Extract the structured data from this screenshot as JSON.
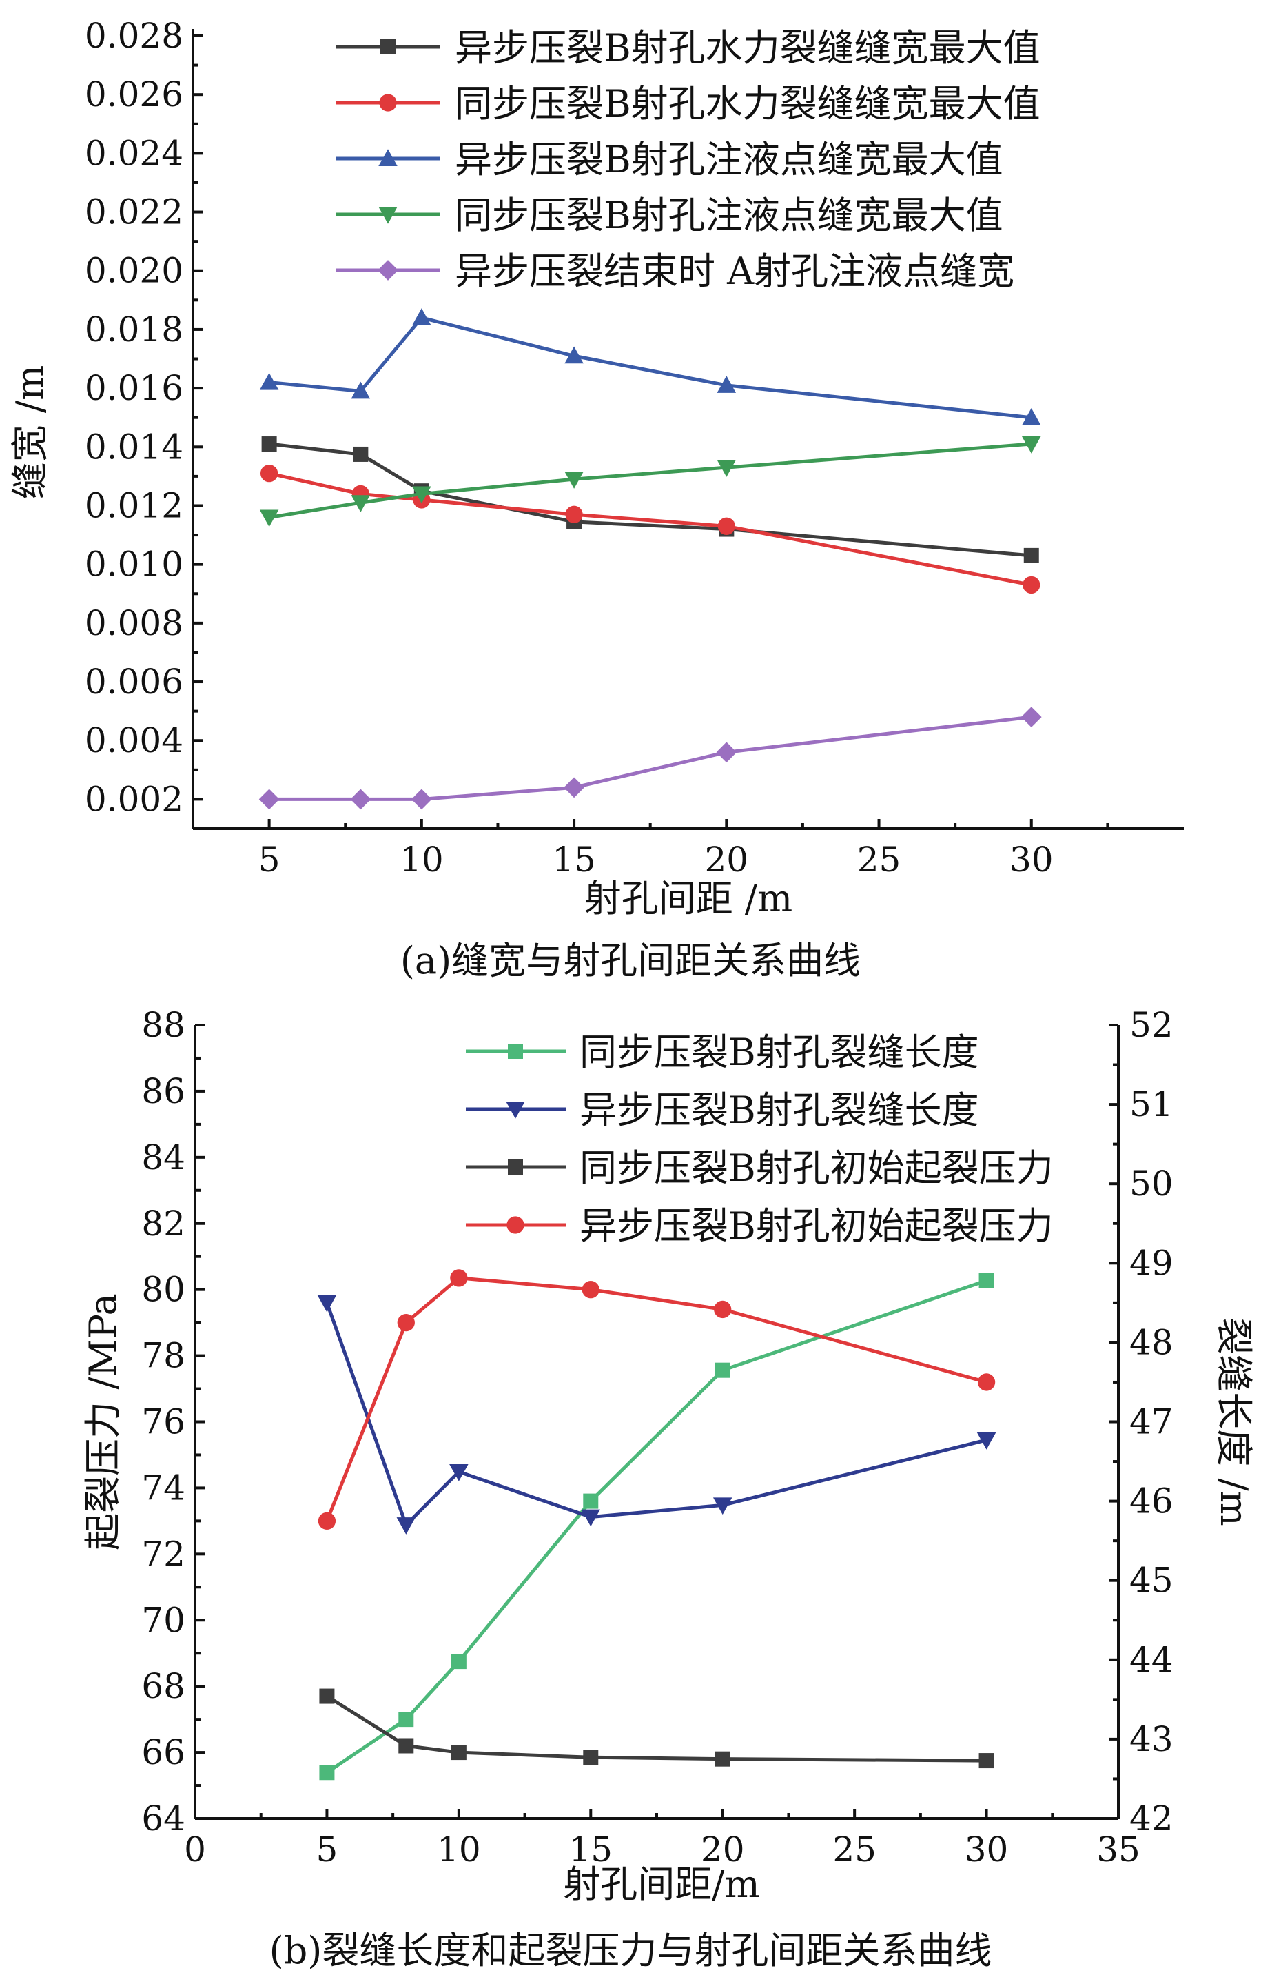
{
  "chart_data": [
    {
      "type": "line",
      "caption": "(a)缝宽与射孔间距关系曲线",
      "xlabel": "射孔间距 /m",
      "ylabel": "缝宽 /m",
      "xlim": [
        2.5,
        35
      ],
      "ylim": [
        0.001,
        0.028
      ],
      "xticks": [
        5,
        10,
        15,
        20,
        25,
        30
      ],
      "xtick_labels": [
        "5",
        "10",
        "15",
        "20",
        "25",
        "30"
      ],
      "yticks": [
        0.002,
        0.004,
        0.006,
        0.008,
        0.01,
        0.012,
        0.014,
        0.016,
        0.018,
        0.02,
        0.022,
        0.024,
        0.026,
        0.028
      ],
      "ytick_labels": [
        "0.002",
        "0.004",
        "0.006",
        "0.008",
        "0.010",
        "0.012",
        "0.014",
        "0.016",
        "0.018",
        "0.020",
        "0.022",
        "0.024",
        "0.026",
        "0.028"
      ],
      "legend_position": "top-right",
      "x": [
        5,
        8,
        10,
        15,
        20,
        30
      ],
      "series": [
        {
          "name": "异步压裂B射孔水力裂缝缝宽最大值",
          "color": "#3d3d3d",
          "marker": "square",
          "values": [
            0.0141,
            0.01375,
            0.0125,
            0.01145,
            0.0112,
            0.0103
          ]
        },
        {
          "name": "同步压裂B射孔水力裂缝缝宽最大值",
          "color": "#e0393b",
          "marker": "circle",
          "values": [
            0.0131,
            0.0124,
            0.0122,
            0.0117,
            0.0113,
            0.0093
          ]
        },
        {
          "name": "异步压裂B射孔注液点缝宽最大值",
          "color": "#3a5ba8",
          "marker": "triangle-up",
          "values": [
            0.0162,
            0.0159,
            0.0184,
            0.0171,
            0.0161,
            0.015
          ]
        },
        {
          "name": "同步压裂B射孔注液点缝宽最大值",
          "color": "#3d9a55",
          "marker": "triangle-down",
          "values": [
            0.0116,
            0.0121,
            0.0124,
            0.0129,
            0.0133,
            0.0141
          ]
        },
        {
          "name": "异步压裂结束时 A射孔注液点缝宽",
          "color": "#9b6fc0",
          "marker": "diamond",
          "values": [
            0.002,
            0.002,
            0.002,
            0.0024,
            0.0036,
            0.0048
          ]
        }
      ]
    },
    {
      "type": "line",
      "caption": "(b)裂缝长度和起裂压力与射孔间距关系曲线",
      "xlabel": "射孔间距/m",
      "ylabel_left": "起裂压力 /MPa",
      "ylabel_right": "裂缝长度 /m",
      "xlim": [
        0,
        35
      ],
      "ylim_left": [
        64,
        88
      ],
      "ylim_right": [
        42,
        52
      ],
      "xticks": [
        0,
        5,
        10,
        15,
        20,
        25,
        30,
        35
      ],
      "xtick_labels": [
        "0",
        "5",
        "10",
        "15",
        "20",
        "25",
        "30",
        "35"
      ],
      "yticks_left": [
        64,
        66,
        68,
        70,
        72,
        74,
        76,
        78,
        80,
        82,
        84,
        86,
        88
      ],
      "ytick_labels_left": [
        "64",
        "66",
        "68",
        "70",
        "72",
        "74",
        "76",
        "78",
        "80",
        "82",
        "84",
        "86",
        "88"
      ],
      "yticks_right": [
        42,
        43,
        44,
        45,
        46,
        47,
        48,
        49,
        50,
        51,
        52
      ],
      "ytick_labels_right": [
        "42",
        "43",
        "44",
        "45",
        "46",
        "47",
        "48",
        "49",
        "50",
        "51",
        "52"
      ],
      "legend_position": "top-right",
      "x": [
        5,
        8,
        10,
        15,
        20,
        30
      ],
      "series": [
        {
          "name": "同步压裂B射孔裂缝长度",
          "axis": "right",
          "color": "#4cb87a",
          "marker": "square",
          "values": [
            42.58,
            43.25,
            43.98,
            46.0,
            47.65,
            48.78
          ]
        },
        {
          "name": "异步压裂B射孔裂缝长度",
          "axis": "right",
          "color": "#2e3b8f",
          "marker": "triangle-down",
          "values": [
            48.5,
            45.7,
            46.37,
            45.8,
            45.95,
            46.77
          ]
        },
        {
          "name": "同步压裂B射孔初始起裂压力",
          "axis": "left",
          "color": "#3d3d3d",
          "marker": "square",
          "values": [
            67.7,
            66.2,
            66.0,
            65.85,
            65.8,
            65.75
          ]
        },
        {
          "name": "异步压裂B射孔初始起裂压力",
          "axis": "left",
          "color": "#e0393b",
          "marker": "circle",
          "values": [
            73.0,
            79.0,
            80.35,
            80.0,
            79.4,
            77.2
          ]
        }
      ]
    }
  ]
}
